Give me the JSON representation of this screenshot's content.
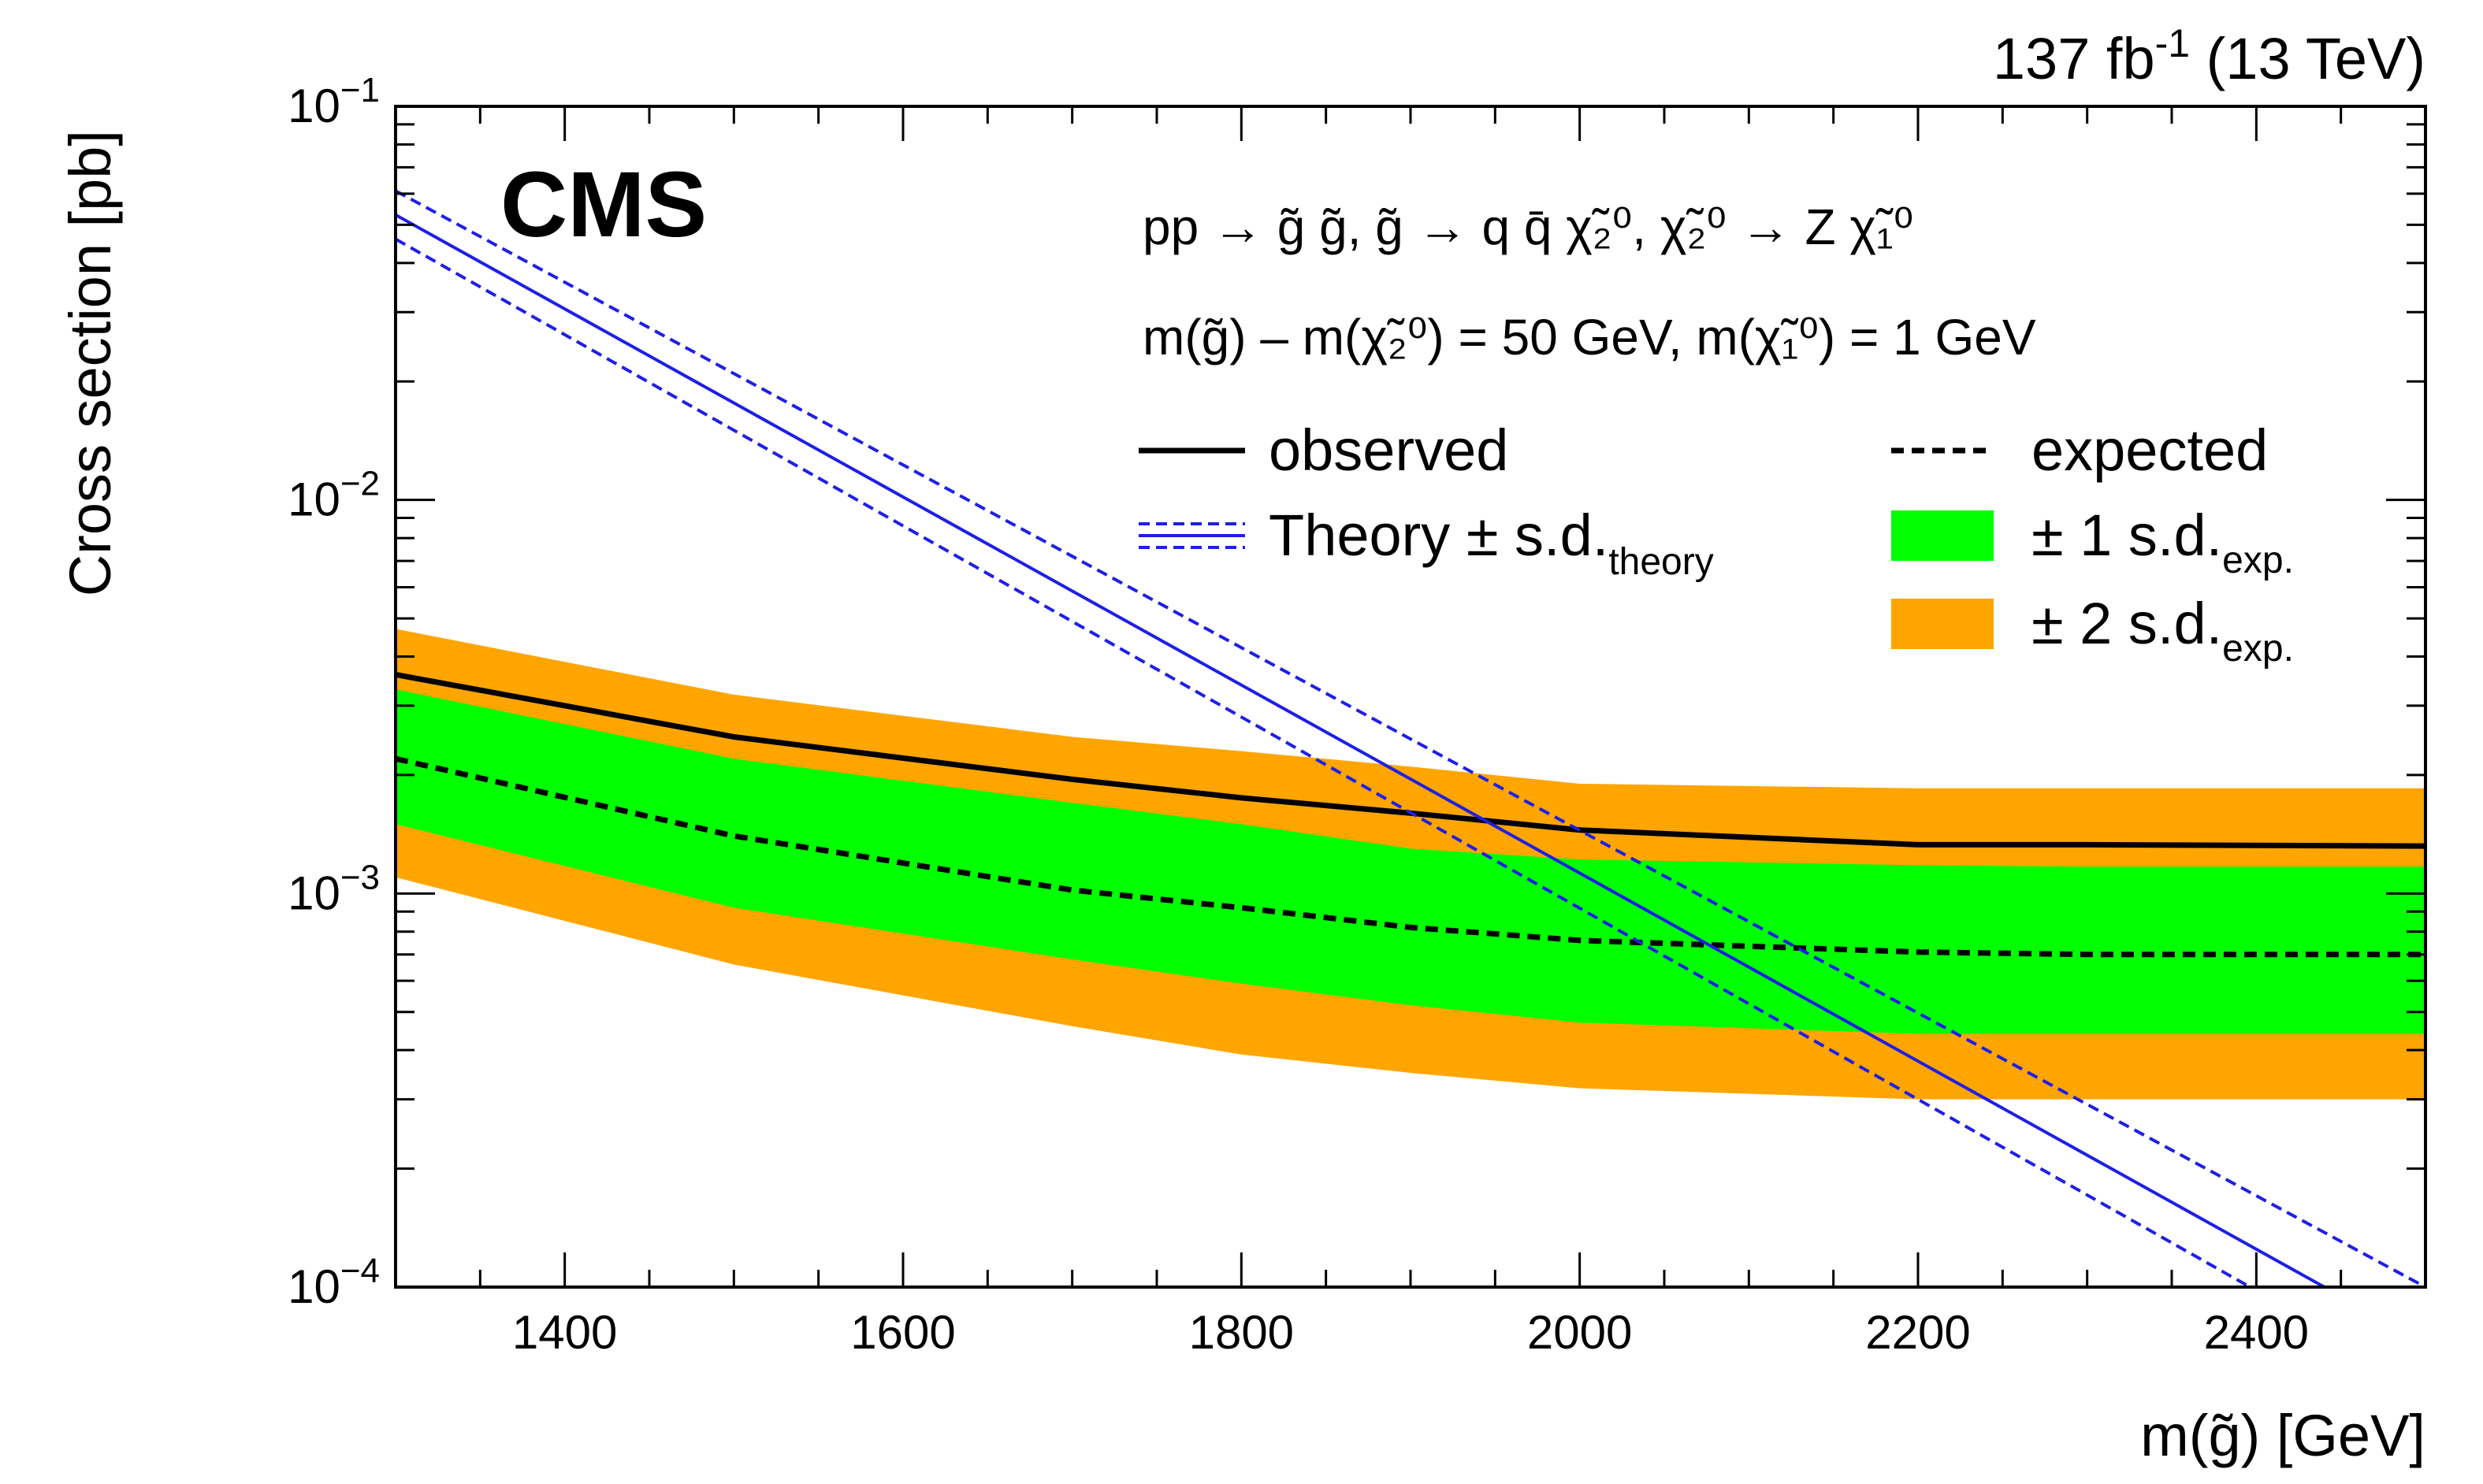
{
  "chart_data": {
    "type": "line",
    "experiment_label": "CMS",
    "lumi_label": "137 fb",
    "lumi_exponent": "-1",
    "energy_label": " (13 TeV)",
    "process_lines": [
      "pp → g̃ g̃, g̃ → q q̄ χ̃₂⁰, χ̃₂⁰ → Z χ̃₁⁰",
      "m(g̃) – m(χ̃₂⁰) = 50 GeV, m(χ̃₁⁰) = 1 GeV"
    ],
    "xlabel": "m(g̃) [GeV]",
    "ylabel": "Cross section [pb]",
    "xlim": [
      1300,
      2500
    ],
    "ylim": [
      0.0001,
      0.1
    ],
    "yscale": "log",
    "x_ticks": [
      1400,
      1600,
      1800,
      2000,
      2200,
      2400
    ],
    "y_tick_labels": [
      {
        "value": 0.1,
        "base": "10",
        "exp": "−1"
      },
      {
        "value": 0.01,
        "base": "10",
        "exp": "−2"
      },
      {
        "value": 0.001,
        "base": "10",
        "exp": "−3"
      },
      {
        "value": 0.0001,
        "base": "10",
        "exp": "−4"
      }
    ],
    "x": [
      1300,
      1500,
      1700,
      1800,
      1900,
      2000,
      2200,
      2300,
      2500
    ],
    "observed": [
      0.0036,
      0.0025,
      0.00195,
      0.00175,
      0.0016,
      0.00145,
      0.00133,
      0.00133,
      0.00132
    ],
    "expected": [
      0.0022,
      0.0014,
      0.00102,
      0.00092,
      0.00082,
      0.00076,
      0.00071,
      0.0007,
      0.0007
    ],
    "band_1sd": {
      "upper": [
        0.0033,
        0.0022,
        0.0017,
        0.0015,
        0.0013,
        0.00122,
        0.00118,
        0.00117,
        0.00117
      ],
      "lower": [
        0.0015,
        0.00092,
        0.00068,
        0.00059,
        0.00052,
        0.00047,
        0.00044,
        0.00044,
        0.00044
      ]
    },
    "band_2sd": {
      "upper": [
        0.0047,
        0.0032,
        0.0025,
        0.0023,
        0.0021,
        0.0019,
        0.00185,
        0.00185,
        0.00185
      ],
      "lower": [
        0.0011,
        0.00066,
        0.00046,
        0.00039,
        0.00035,
        0.00032,
        0.0003,
        0.0003,
        0.0003
      ]
    },
    "theory": {
      "x": [
        1300,
        2500
      ],
      "central": [
        0.053,
        7.2e-05
      ],
      "upper": [
        0.061,
        0.0001
      ],
      "lower": [
        0.046,
        5.6e-05
      ]
    },
    "legend": {
      "observed": "observed",
      "expected": "expected",
      "theory": "Theory ± s.d.",
      "theory_sub": "theory",
      "sd1": "± 1 s.d.",
      "sd2": "± 2 s.d.",
      "exp_sub": "exp."
    },
    "colors": {
      "band_1sd": "#00ff00",
      "band_2sd": "#ffa500",
      "theory": "#1f1fe6",
      "lines": "#000000"
    },
    "grid": false
  }
}
